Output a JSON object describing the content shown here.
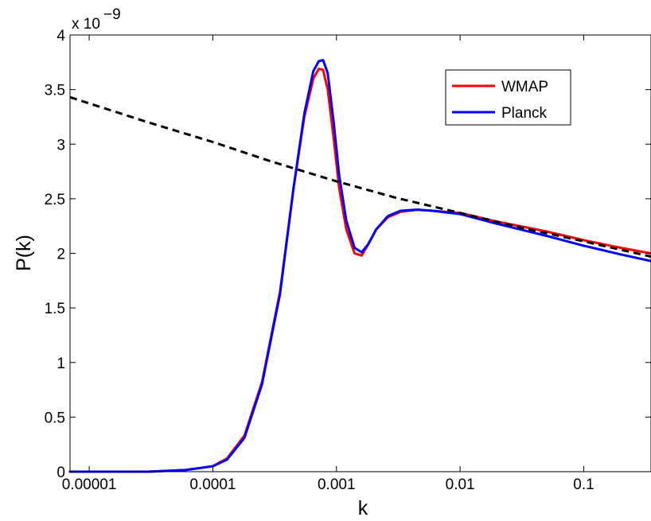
{
  "chart_data": {
    "type": "line",
    "xlabel": "k",
    "ylabel": "P(k)",
    "x_scale": "log",
    "xlim": [
      7e-06,
      0.35
    ],
    "ylim": [
      0,
      4
    ],
    "y_multiplier": "x 10",
    "y_multiplier_exponent": "−9",
    "x_ticks": [
      {
        "value": 1e-05,
        "label": "0.00001"
      },
      {
        "value": 0.0001,
        "label": "0.0001"
      },
      {
        "value": 0.001,
        "label": "0.001"
      },
      {
        "value": 0.01,
        "label": "0.01"
      },
      {
        "value": 0.1,
        "label": "0.1"
      }
    ],
    "y_ticks": [
      {
        "value": 0,
        "label": "0"
      },
      {
        "value": 0.5,
        "label": "0.5"
      },
      {
        "value": 1,
        "label": "1"
      },
      {
        "value": 1.5,
        "label": "1.5"
      },
      {
        "value": 2,
        "label": "2"
      },
      {
        "value": 2.5,
        "label": "2.5"
      },
      {
        "value": 3,
        "label": "3"
      },
      {
        "value": 3.5,
        "label": "3.5"
      },
      {
        "value": 4,
        "label": "4"
      }
    ],
    "grid": false,
    "legend_position": "top-right",
    "series": [
      {
        "name": "WMAP",
        "color": "#ff0000",
        "style": "solid",
        "in_legend": true,
        "x": [
          7e-06,
          3e-05,
          6e-05,
          0.0001,
          0.00013,
          0.00018,
          0.00025,
          0.00035,
          0.00045,
          0.00055,
          0.00065,
          0.00072,
          0.00078,
          0.00085,
          0.00095,
          0.00105,
          0.0012,
          0.0014,
          0.0016,
          0.0018,
          0.0021,
          0.0026,
          0.0033,
          0.0045,
          0.006,
          0.01,
          0.02,
          0.05,
          0.1,
          0.2,
          0.35
        ],
        "y": [
          0.0,
          0.0,
          0.015,
          0.05,
          0.12,
          0.33,
          0.82,
          1.65,
          2.6,
          3.25,
          3.6,
          3.69,
          3.68,
          3.5,
          3.05,
          2.6,
          2.22,
          2.0,
          1.98,
          2.08,
          2.22,
          2.33,
          2.38,
          2.4,
          2.39,
          2.37,
          2.29,
          2.2,
          2.12,
          2.05,
          2.0
        ]
      },
      {
        "name": "Planck",
        "color": "#0000ff",
        "style": "solid",
        "in_legend": true,
        "x": [
          7e-06,
          3e-05,
          6e-05,
          0.0001,
          0.00013,
          0.00018,
          0.00025,
          0.00035,
          0.00045,
          0.00055,
          0.00065,
          0.00072,
          0.00078,
          0.00085,
          0.00095,
          0.00105,
          0.0012,
          0.0014,
          0.0016,
          0.0018,
          0.0021,
          0.0026,
          0.0033,
          0.0045,
          0.006,
          0.01,
          0.02,
          0.05,
          0.1,
          0.2,
          0.35
        ],
        "y": [
          0.0,
          0.0,
          0.015,
          0.05,
          0.11,
          0.31,
          0.8,
          1.63,
          2.6,
          3.28,
          3.67,
          3.76,
          3.77,
          3.65,
          3.2,
          2.72,
          2.3,
          2.05,
          2.01,
          2.08,
          2.22,
          2.34,
          2.39,
          2.4,
          2.39,
          2.36,
          2.27,
          2.16,
          2.07,
          1.99,
          1.93
        ]
      },
      {
        "name": "",
        "color": "#000000",
        "style": "dashed",
        "in_legend": false,
        "x": [
          7e-06,
          3e-05,
          0.0001,
          0.0003,
          0.001,
          0.003,
          0.01,
          0.03,
          0.1,
          0.35
        ],
        "y": [
          3.43,
          3.2,
          3.02,
          2.84,
          2.66,
          2.51,
          2.37,
          2.24,
          2.11,
          1.97
        ]
      }
    ]
  }
}
